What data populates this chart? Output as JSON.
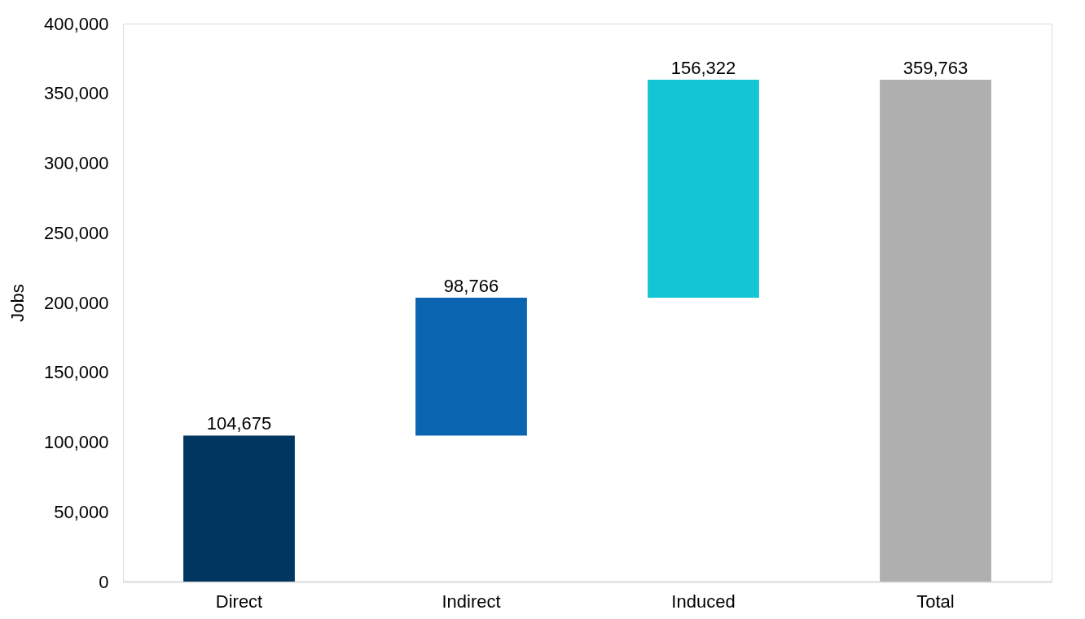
{
  "chart_data": {
    "type": "bar",
    "ylabel": "Jobs",
    "categories": [
      "Direct",
      "Indirect",
      "Induced",
      "Total"
    ],
    "values": [
      104675,
      98766,
      156322,
      359763
    ],
    "value_labels": [
      "104,675",
      "98,766",
      "156,322",
      "359,763"
    ],
    "base": [
      0,
      104675,
      203441,
      0
    ],
    "colors": [
      "#003660",
      "#0b64b0",
      "#14c5d5",
      "#afafaf"
    ],
    "ylim": [
      0,
      400000
    ],
    "yticks": [
      0,
      {
        "value": 50000,
        "label": "50,000"
      },
      {
        "value": 100000,
        "label": "100,000"
      },
      {
        "value": 150000,
        "label": "150,000"
      },
      {
        "value": 200000,
        "label": "200,000"
      },
      {
        "value": 250000,
        "label": "250,000"
      },
      {
        "value": 300000,
        "label": "300,000"
      },
      {
        "value": 350000,
        "label": "350,000"
      },
      {
        "value": 400000,
        "label": "400,000"
      }
    ],
    "grid": false
  }
}
